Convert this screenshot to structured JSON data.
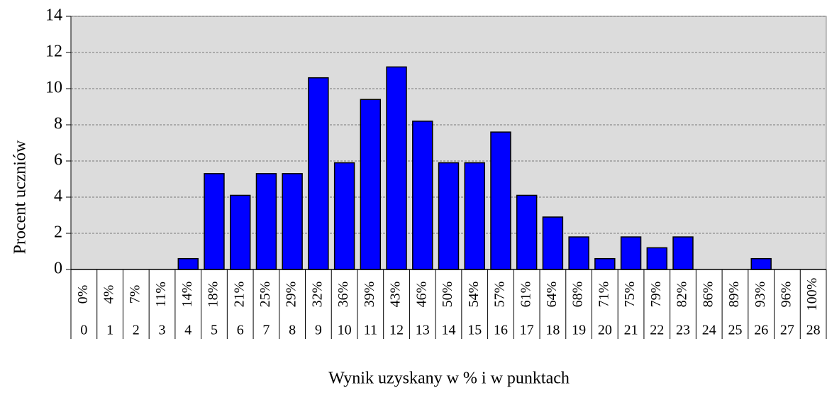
{
  "chart_data": {
    "type": "bar",
    "y_label": "Procent uczniów",
    "x_label": "Wynik uzyskany w % i w punktach",
    "categories": [
      "0",
      "1",
      "2",
      "3",
      "4",
      "5",
      "6",
      "7",
      "8",
      "9",
      "10",
      "11",
      "12",
      "13",
      "14",
      "15",
      "16",
      "17",
      "18",
      "19",
      "20",
      "21",
      "22",
      "23",
      "24",
      "25",
      "26",
      "27",
      "28"
    ],
    "percent_labels": [
      "0%",
      "4%",
      "7%",
      "11%",
      "14%",
      "18%",
      "21%",
      "25%",
      "29%",
      "32%",
      "36%",
      "39%",
      "43%",
      "46%",
      "50%",
      "54%",
      "57%",
      "61%",
      "64%",
      "68%",
      "71%",
      "75%",
      "79%",
      "82%",
      "86%",
      "89%",
      "93%",
      "96%",
      "100%"
    ],
    "values": [
      0,
      0,
      0,
      0,
      0.6,
      5.3,
      4.1,
      5.3,
      5.3,
      10.6,
      5.9,
      9.4,
      11.2,
      8.2,
      5.9,
      5.9,
      7.6,
      4.1,
      2.9,
      1.8,
      0.6,
      1.8,
      1.2,
      1.8,
      0,
      0,
      0.6,
      0,
      0
    ],
    "color": "#0000ff",
    "ylim": [
      0,
      14
    ],
    "yticks": [
      0,
      2,
      4,
      6,
      8,
      10,
      12,
      14
    ],
    "grid": true
  }
}
